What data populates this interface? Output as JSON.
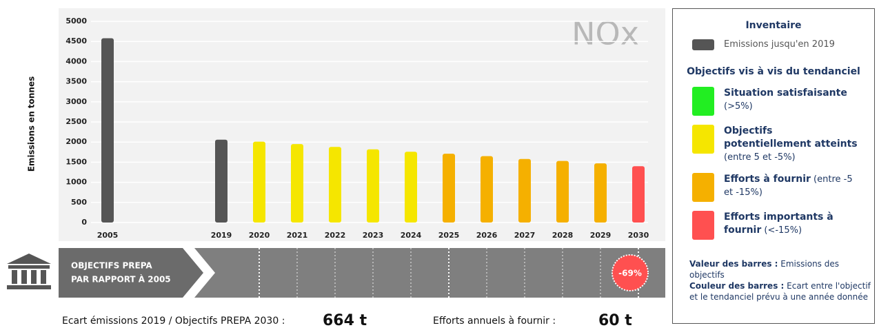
{
  "chart_data": {
    "type": "bar",
    "watermark": "NOx",
    "y_label": "Emissions en tonnes",
    "categories": [
      "2005",
      null,
      null,
      "2019",
      "2020",
      "2021",
      "2022",
      "2023",
      "2024",
      "2025",
      "2026",
      "2027",
      "2028",
      "2029",
      "2030"
    ],
    "values": [
      4580,
      null,
      null,
      2060,
      2010,
      1950,
      1880,
      1820,
      1760,
      1710,
      1650,
      1580,
      1530,
      1470,
      1400
    ],
    "colors": [
      "#555555",
      null,
      null,
      "#555555",
      "#f5e600",
      "#f5e600",
      "#f5e600",
      "#f5e600",
      "#f5e600",
      "#f5b000",
      "#f5b000",
      "#f5b000",
      "#f5b000",
      "#f5b000",
      "#ff5050"
    ],
    "ylim": [
      0,
      5000
    ],
    "yticks": [
      0,
      500,
      1000,
      1500,
      2000,
      2500,
      3000,
      3500,
      4000,
      4500,
      5000
    ],
    "grid": true
  },
  "strip": {
    "label_line1": "OBJECTIFS PREPA",
    "label_line2": "PAR RAPPORT À 2005",
    "badge": "-69%"
  },
  "summary": {
    "gap_label": "Ecart émissions 2019 / Objectifs PREPA 2030 :",
    "gap_value": "664 t",
    "effort_label": "Efforts annuels à fournir :",
    "effort_value": "60 t"
  },
  "legend": {
    "inventory_title": "Inventaire",
    "inventory_items": [
      {
        "label": "Emissions jusqu'en 2019",
        "color": "#555555"
      }
    ],
    "objectives_title": "Objectifs vis à vis du tendanciel",
    "objectives": [
      {
        "label": "Situation satisfaisante",
        "range": "(>5%)",
        "color": "#22ee22"
      },
      {
        "label": "Objectifs potentiellement atteints",
        "range": "(entre 5 et -5%)",
        "color": "#f5e600"
      },
      {
        "label": "Efforts à fournir",
        "range": "(entre -5 et -15%)",
        "color": "#f5b000"
      },
      {
        "label": "Efforts importants à fournir",
        "range": "(<-15%)",
        "color": "#ff5050"
      }
    ],
    "notes": [
      {
        "key": "Valeur des barres :",
        "text": "Emissions des objectifs"
      },
      {
        "key": "Couleur des barres :",
        "text": "Ecart entre l'objectif et le tendanciel prévu à une année donnée"
      }
    ]
  }
}
